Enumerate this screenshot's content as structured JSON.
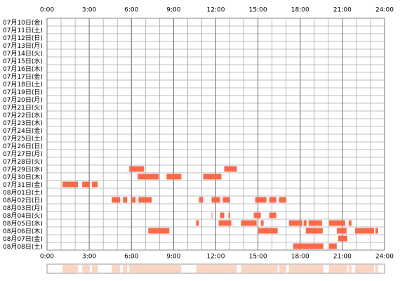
{
  "chart_data": {
    "type": "timeline",
    "categories": [
      "07月10日(金)",
      "07月11日(土)",
      "07月12日(日)",
      "07月13日(月)",
      "07月14日(火)",
      "07月15日(水)",
      "07月16日(木)",
      "07月17日(金)",
      "07月18日(土)",
      "07月19日(日)",
      "07月20日(月)",
      "07月21日(火)",
      "07月22日(水)",
      "07月23日(木)",
      "07月24日(金)",
      "07月25日(土)",
      "07月26日(日)",
      "07月27日(月)",
      "07月28日(火)",
      "07月29日(水)",
      "07月30日(木)",
      "07月31日(金)",
      "08月01日(土)",
      "08月02日(日)",
      "08月03日(月)",
      "08月04日(火)",
      "08月05日(水)",
      "08月06日(木)",
      "08月07日(金)",
      "08月08日(土)"
    ],
    "intervals": [
      [],
      [],
      [],
      [],
      [],
      [],
      [],
      [],
      [],
      [],
      [],
      [],
      [],
      [],
      [],
      [],
      [],
      [],
      [],
      [
        [
          5.85,
          6.9
        ],
        [
          12.6,
          13.5
        ]
      ],
      [
        [
          6.45,
          7.95
        ],
        [
          8.5,
          9.55
        ],
        [
          11.1,
          12.4
        ]
      ],
      [
        [
          1.1,
          2.2
        ],
        [
          2.5,
          3.05
        ],
        [
          3.2,
          3.6
        ]
      ],
      [],
      [
        [
          4.6,
          5.2
        ],
        [
          5.4,
          5.7
        ],
        [
          6.0,
          6.3
        ],
        [
          6.5,
          7.45
        ],
        [
          10.8,
          11.1
        ],
        [
          11.7,
          12.3
        ],
        [
          12.5,
          13.0
        ],
        [
          14.8,
          15.6
        ],
        [
          15.8,
          16.3
        ],
        [
          16.5,
          17.0
        ]
      ],
      [],
      [
        [
          11.7,
          11.75
        ],
        [
          12.3,
          12.6
        ],
        [
          12.9,
          13.0
        ],
        [
          14.7,
          15.2
        ],
        [
          15.8,
          16.3
        ]
      ],
      [
        [
          10.6,
          10.8
        ],
        [
          12.2,
          13.1
        ],
        [
          13.8,
          14.9
        ],
        [
          15.2,
          15.4
        ],
        [
          17.2,
          18.15
        ],
        [
          18.25,
          18.45
        ],
        [
          18.6,
          19.55
        ],
        [
          20.05,
          21.2
        ],
        [
          21.45,
          21.65
        ]
      ],
      [
        [
          7.2,
          8.7
        ],
        [
          15.0,
          16.4
        ],
        [
          18.4,
          19.6
        ],
        [
          20.6,
          21.3
        ],
        [
          21.9,
          23.25
        ],
        [
          23.35,
          23.55
        ]
      ],
      [
        [
          20.7,
          21.35
        ]
      ],
      [
        [
          17.5,
          19.65
        ],
        [
          20.05,
          20.6
        ]
      ]
    ],
    "color": "#f96a4a",
    "summary_color": "#fcd5c2",
    "xlim": [
      0,
      24
    ],
    "xticks": [
      {
        "value": 0,
        "label": "0:00"
      },
      {
        "value": 3,
        "label": "3:00"
      },
      {
        "value": 6,
        "label": "6:00"
      },
      {
        "value": 9,
        "label": "9:00"
      },
      {
        "value": 12,
        "label": "12:00"
      },
      {
        "value": 15,
        "label": "15:00"
      },
      {
        "value": 18,
        "label": "18:00"
      },
      {
        "value": 21,
        "label": "21:00"
      },
      {
        "value": 24,
        "label": "24:00"
      }
    ],
    "grid_step": 1,
    "grid": true
  }
}
